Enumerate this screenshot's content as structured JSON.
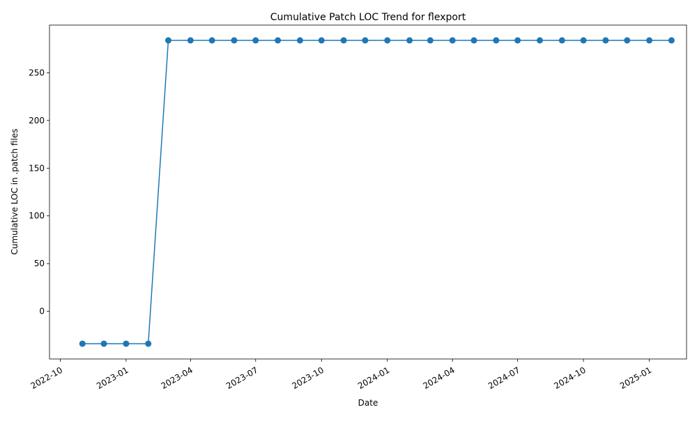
{
  "chart_data": {
    "type": "line",
    "title": "Cumulative Patch LOC Trend for flexport",
    "xlabel": "Date",
    "ylabel": "Cumulative LOC in .patch files",
    "x_axis_type": "date",
    "xlim": [
      "2022-09-16",
      "2025-02-22"
    ],
    "ylim": [
      -50,
      300
    ],
    "x_ticks": [
      "2022-10-01",
      "2023-01-01",
      "2023-04-01",
      "2023-07-01",
      "2023-10-01",
      "2024-01-01",
      "2024-04-01",
      "2024-07-01",
      "2024-10-01",
      "2025-01-01"
    ],
    "x_tick_labels": [
      "2022-10",
      "2023-01",
      "2023-04",
      "2023-07",
      "2023-10",
      "2024-01",
      "2024-04",
      "2024-07",
      "2024-10",
      "2025-01"
    ],
    "y_ticks": [
      0,
      50,
      100,
      150,
      200,
      250
    ],
    "y_tick_labels": [
      "0",
      "50",
      "100",
      "150",
      "200",
      "250"
    ],
    "grid": false,
    "legend": null,
    "line_color": "#1f77b4",
    "series": [
      {
        "name": "Cumulative LOC",
        "x": [
          "2022-11-01",
          "2022-12-01",
          "2023-01-01",
          "2023-02-01",
          "2023-03-01",
          "2023-04-01",
          "2023-05-01",
          "2023-06-01",
          "2023-07-01",
          "2023-08-01",
          "2023-09-01",
          "2023-10-01",
          "2023-11-01",
          "2023-12-01",
          "2024-01-01",
          "2024-02-01",
          "2024-03-01",
          "2024-04-01",
          "2024-05-01",
          "2024-06-01",
          "2024-07-01",
          "2024-08-01",
          "2024-09-01",
          "2024-10-01",
          "2024-11-01",
          "2024-12-01",
          "2025-01-01",
          "2025-02-01"
        ],
        "values": [
          -34,
          -34,
          -34,
          -34,
          284,
          284,
          284,
          284,
          284,
          284,
          284,
          284,
          284,
          284,
          284,
          284,
          284,
          284,
          284,
          284,
          284,
          284,
          284,
          284,
          284,
          284,
          284,
          284
        ]
      }
    ]
  }
}
